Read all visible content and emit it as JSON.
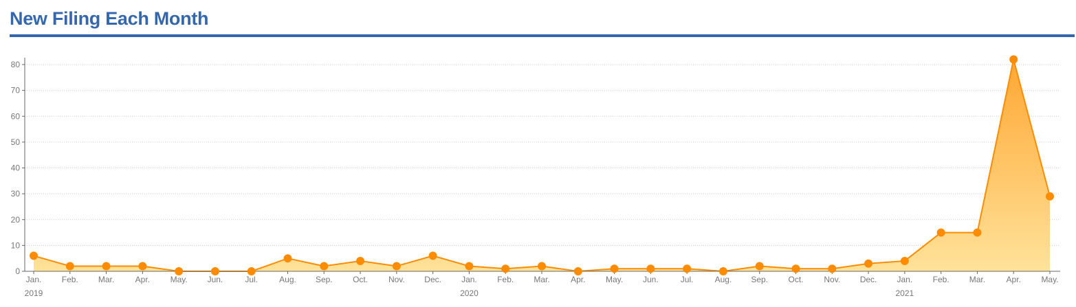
{
  "header": {
    "title": "New Filing Each Month"
  },
  "colors": {
    "title": "#3567ad",
    "line": "#ff8c00",
    "marker": "#ff8c00",
    "area_top": "#ffa733",
    "area_bottom": "#ffe29a",
    "grid": "#cccccc",
    "axis": "#666666"
  },
  "chart_data": {
    "type": "area",
    "x": [
      "Jan.",
      "Feb.",
      "Mar.",
      "Apr.",
      "May.",
      "Jun.",
      "Jul.",
      "Aug.",
      "Sep.",
      "Oct.",
      "Nov.",
      "Dec.",
      "Jan.",
      "Feb.",
      "Mar.",
      "Apr.",
      "May.",
      "Jun.",
      "Jul.",
      "Aug.",
      "Sep.",
      "Oct.",
      "Nov.",
      "Dec.",
      "Jan.",
      "Feb.",
      "Mar.",
      "Apr.",
      "May."
    ],
    "year_labels": [
      {
        "index": 0,
        "label": "2019"
      },
      {
        "index": 12,
        "label": "2020"
      },
      {
        "index": 24,
        "label": "2021"
      }
    ],
    "series": [
      {
        "values": [
          6,
          2,
          2,
          2,
          0,
          0,
          0,
          5,
          2,
          4,
          2,
          6,
          2,
          1,
          2,
          0,
          1,
          1,
          1,
          0,
          2,
          1,
          1,
          3,
          4,
          15,
          15,
          82,
          29
        ]
      }
    ],
    "yticks": [
      0,
      10,
      20,
      30,
      40,
      50,
      60,
      70,
      80
    ],
    "ylim": [
      0,
      82
    ],
    "grid": true,
    "legend": "none",
    "markers": true
  }
}
